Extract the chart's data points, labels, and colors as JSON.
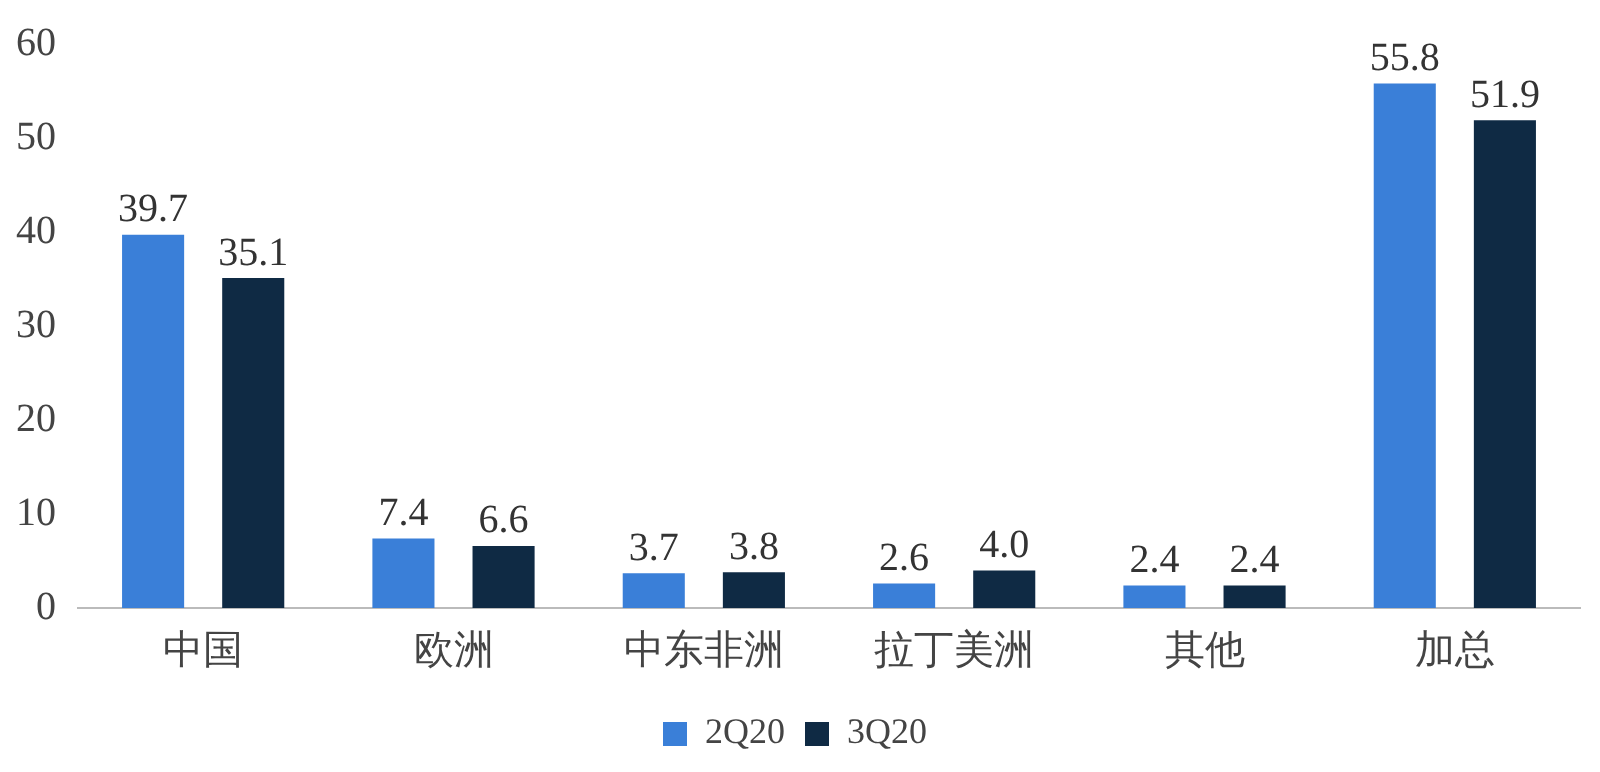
{
  "chart_data": {
    "type": "bar",
    "categories": [
      "中国",
      "欧洲",
      "中东非洲",
      "拉丁美洲",
      "其他",
      "加总"
    ],
    "series": [
      {
        "name": "2Q20",
        "color": "#3a7fd8",
        "values": [
          39.7,
          7.4,
          3.7,
          2.6,
          2.4,
          55.8
        ],
        "value_labels": [
          "39.7",
          "7.4",
          "3.7",
          "2.6",
          "2.4",
          "55.8"
        ]
      },
      {
        "name": "3Q20",
        "color": "#0f2a44",
        "values": [
          35.1,
          6.6,
          3.8,
          4,
          2.4,
          51.9
        ],
        "value_labels": [
          "35.1",
          "6.6",
          "3.8",
          "4.0",
          "2.4",
          "51.9"
        ]
      }
    ],
    "ylim": [
      0,
      60
    ],
    "yticks": [
      0,
      10,
      20,
      30,
      40,
      50,
      60
    ],
    "grid": false,
    "legend": "bottom"
  }
}
